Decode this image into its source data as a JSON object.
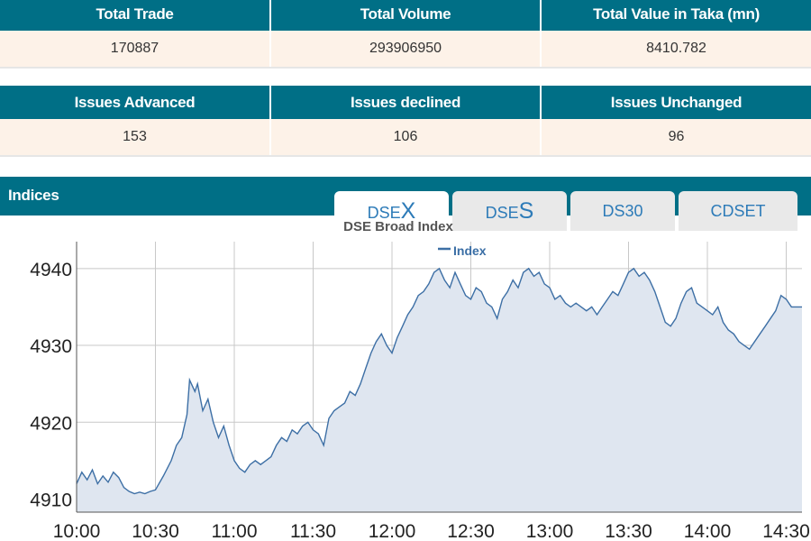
{
  "summary_top": {
    "headers": [
      "Total Trade",
      "Total Volume",
      "Total Value in Taka (mn)"
    ],
    "values": [
      "170887",
      "293906950",
      "8410.782"
    ]
  },
  "summary_issues": {
    "headers": [
      "Issues Advanced",
      "Issues declined",
      "Issues Unchanged"
    ],
    "values": [
      "153",
      "106",
      "96"
    ]
  },
  "indices": {
    "title": "Indices",
    "tabs": [
      {
        "prefix": "DSE",
        "suffix": "X",
        "active": true
      },
      {
        "prefix": "DSE",
        "suffix": "S",
        "active": false
      },
      {
        "prefix": "DS30",
        "suffix": "",
        "active": false
      },
      {
        "prefix": "CDSET",
        "suffix": "",
        "active": false
      }
    ]
  },
  "colors": {
    "header_bg": "#006f86",
    "row_bg": "#fdf2e8",
    "tab_text": "#2d7bb8",
    "line": "#3d6fa5",
    "fill": "#dfe6f0"
  },
  "chart_data": {
    "type": "area",
    "title": "DSE Broad Index",
    "legend": "Index",
    "legend_position": "top-center",
    "grid": true,
    "x_ticks": [
      "10:00",
      "10:30",
      "11:00",
      "11:30",
      "12:00",
      "12:30",
      "13:00",
      "13:30",
      "14:00",
      "14:30"
    ],
    "y_ticks": [
      4910,
      4920,
      4930,
      4940
    ],
    "ylim": [
      4908.3,
      4943.5
    ],
    "series": [
      {
        "name": "Index",
        "points": [
          [
            "10:00",
            4912.0
          ],
          [
            "10:02",
            4913.5
          ],
          [
            "10:04",
            4912.5
          ],
          [
            "10:06",
            4913.8
          ],
          [
            "10:08",
            4912.0
          ],
          [
            "10:10",
            4913.0
          ],
          [
            "10:12",
            4912.2
          ],
          [
            "10:14",
            4913.5
          ],
          [
            "10:16",
            4912.8
          ],
          [
            "10:18",
            4911.5
          ],
          [
            "10:20",
            4911.0
          ],
          [
            "10:22",
            4910.7
          ],
          [
            "10:24",
            4910.9
          ],
          [
            "10:26",
            4910.7
          ],
          [
            "10:28",
            4911.0
          ],
          [
            "10:30",
            4911.2
          ],
          [
            "10:33",
            4913.0
          ],
          [
            "10:36",
            4915.0
          ],
          [
            "10:38",
            4917.0
          ],
          [
            "10:40",
            4918.0
          ],
          [
            "10:42",
            4921.0
          ],
          [
            "10:43",
            4925.5
          ],
          [
            "10:45",
            4924.0
          ],
          [
            "10:46",
            4925.0
          ],
          [
            "10:48",
            4921.5
          ],
          [
            "10:50",
            4923.0
          ],
          [
            "10:52",
            4920.0
          ],
          [
            "10:54",
            4918.0
          ],
          [
            "10:56",
            4919.5
          ],
          [
            "10:58",
            4917.0
          ],
          [
            "11:00",
            4915.0
          ],
          [
            "11:02",
            4914.0
          ],
          [
            "11:04",
            4913.5
          ],
          [
            "11:06",
            4914.5
          ],
          [
            "11:08",
            4915.0
          ],
          [
            "11:10",
            4914.5
          ],
          [
            "11:12",
            4915.0
          ],
          [
            "11:14",
            4915.5
          ],
          [
            "11:16",
            4917.0
          ],
          [
            "11:18",
            4918.0
          ],
          [
            "11:20",
            4917.5
          ],
          [
            "11:22",
            4919.0
          ],
          [
            "11:24",
            4918.5
          ],
          [
            "11:26",
            4919.5
          ],
          [
            "11:28",
            4920.0
          ],
          [
            "11:30",
            4919.0
          ],
          [
            "11:32",
            4918.5
          ],
          [
            "11:34",
            4917.0
          ],
          [
            "11:36",
            4920.5
          ],
          [
            "11:38",
            4921.5
          ],
          [
            "11:40",
            4922.0
          ],
          [
            "11:42",
            4922.5
          ],
          [
            "11:44",
            4924.0
          ],
          [
            "11:46",
            4923.5
          ],
          [
            "11:48",
            4925.0
          ],
          [
            "11:50",
            4927.0
          ],
          [
            "11:52",
            4929.0
          ],
          [
            "11:54",
            4930.5
          ],
          [
            "11:56",
            4931.5
          ],
          [
            "11:58",
            4930.0
          ],
          [
            "12:00",
            4929.0
          ],
          [
            "12:02",
            4931.0
          ],
          [
            "12:04",
            4932.5
          ],
          [
            "12:06",
            4934.0
          ],
          [
            "12:08",
            4935.0
          ],
          [
            "12:10",
            4936.5
          ],
          [
            "12:12",
            4937.0
          ],
          [
            "12:14",
            4938.0
          ],
          [
            "12:16",
            4939.5
          ],
          [
            "12:18",
            4940.0
          ],
          [
            "12:20",
            4938.5
          ],
          [
            "12:22",
            4937.5
          ],
          [
            "12:24",
            4939.5
          ],
          [
            "12:26",
            4938.0
          ],
          [
            "12:28",
            4936.5
          ],
          [
            "12:30",
            4936.0
          ],
          [
            "12:32",
            4937.5
          ],
          [
            "12:34",
            4937.0
          ],
          [
            "12:36",
            4935.5
          ],
          [
            "12:38",
            4935.0
          ],
          [
            "12:40",
            4933.5
          ],
          [
            "12:42",
            4936.0
          ],
          [
            "12:44",
            4937.0
          ],
          [
            "12:46",
            4938.5
          ],
          [
            "12:48",
            4937.5
          ],
          [
            "12:50",
            4939.5
          ],
          [
            "12:52",
            4940.0
          ],
          [
            "12:54",
            4939.0
          ],
          [
            "12:56",
            4939.5
          ],
          [
            "12:58",
            4938.0
          ],
          [
            "13:00",
            4937.5
          ],
          [
            "13:02",
            4936.0
          ],
          [
            "13:04",
            4936.5
          ],
          [
            "13:06",
            4935.5
          ],
          [
            "13:08",
            4935.0
          ],
          [
            "13:10",
            4935.5
          ],
          [
            "13:12",
            4935.0
          ],
          [
            "13:14",
            4934.5
          ],
          [
            "13:16",
            4935.0
          ],
          [
            "13:18",
            4934.0
          ],
          [
            "13:20",
            4935.0
          ],
          [
            "13:22",
            4936.0
          ],
          [
            "13:24",
            4937.0
          ],
          [
            "13:26",
            4936.5
          ],
          [
            "13:28",
            4938.0
          ],
          [
            "13:30",
            4939.5
          ],
          [
            "13:32",
            4940.0
          ],
          [
            "13:34",
            4939.0
          ],
          [
            "13:36",
            4939.5
          ],
          [
            "13:38",
            4938.5
          ],
          [
            "13:40",
            4937.0
          ],
          [
            "13:42",
            4935.0
          ],
          [
            "13:44",
            4933.0
          ],
          [
            "13:46",
            4932.5
          ],
          [
            "13:48",
            4933.5
          ],
          [
            "13:50",
            4935.5
          ],
          [
            "13:52",
            4937.0
          ],
          [
            "13:54",
            4937.5
          ],
          [
            "13:56",
            4935.5
          ],
          [
            "13:58",
            4935.0
          ],
          [
            "14:00",
            4934.5
          ],
          [
            "14:02",
            4934.0
          ],
          [
            "14:04",
            4935.0
          ],
          [
            "14:06",
            4933.0
          ],
          [
            "14:08",
            4932.0
          ],
          [
            "14:10",
            4931.5
          ],
          [
            "14:12",
            4930.5
          ],
          [
            "14:14",
            4930.0
          ],
          [
            "14:16",
            4929.5
          ],
          [
            "14:18",
            4930.5
          ],
          [
            "14:20",
            4931.5
          ],
          [
            "14:22",
            4932.5
          ],
          [
            "14:24",
            4933.5
          ],
          [
            "14:26",
            4934.5
          ],
          [
            "14:28",
            4936.5
          ],
          [
            "14:30",
            4936.0
          ],
          [
            "14:32",
            4935.0
          ],
          [
            "14:36",
            4935.0
          ]
        ]
      }
    ]
  }
}
